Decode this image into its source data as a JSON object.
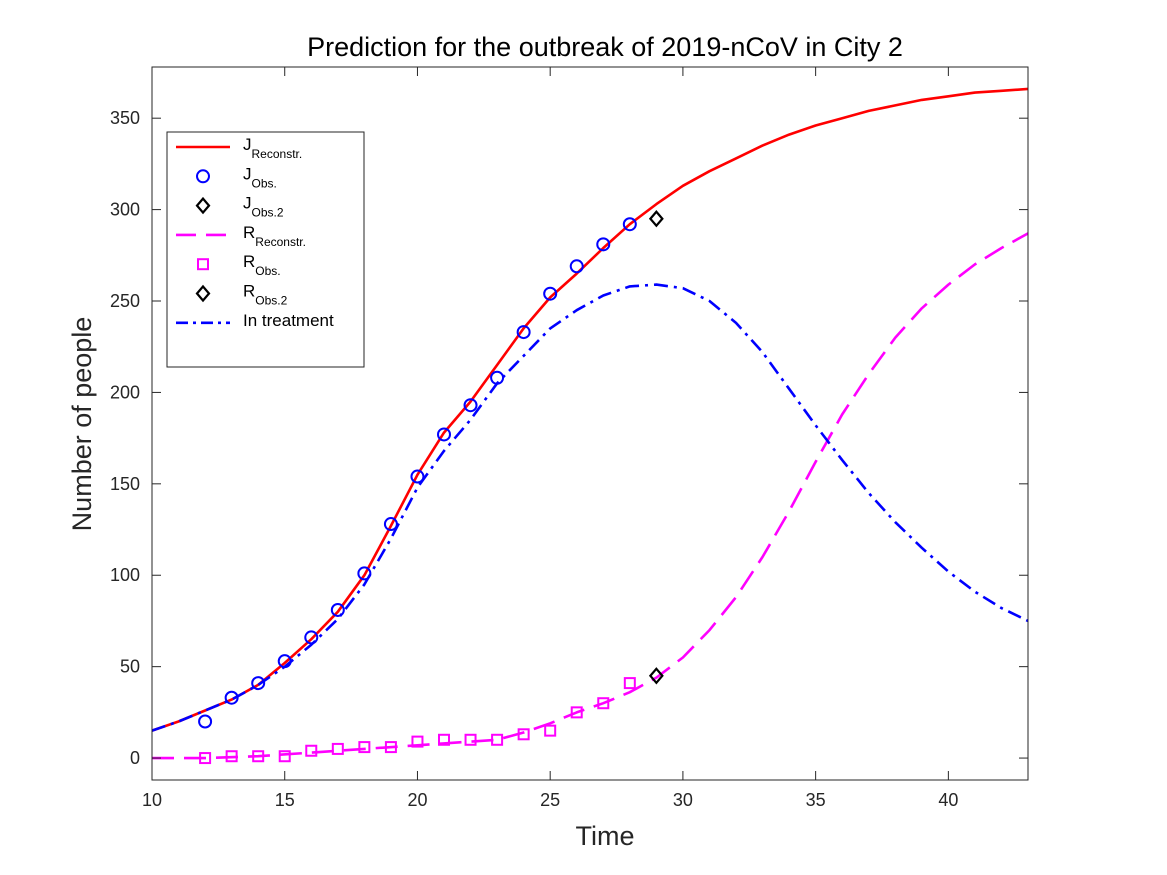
{
  "chart_data": {
    "type": "line",
    "title": "Prediction for the outbreak of 2019-nCoV in City 2",
    "xlabel": "Time",
    "ylabel": "Number of people",
    "xlim": [
      10,
      43
    ],
    "ylim": [
      -12,
      378
    ],
    "xticks": [
      10,
      15,
      20,
      25,
      30,
      35,
      40
    ],
    "yticks": [
      0,
      50,
      100,
      150,
      200,
      250,
      300,
      350
    ],
    "grid": false,
    "legend_position": "top-left",
    "series": [
      {
        "key": "j_reconstr",
        "name": "J",
        "sub": "Reconstr.",
        "style": "solid",
        "marker": "none",
        "color": "#ff0000",
        "x": [
          10,
          11,
          12,
          13,
          14,
          15,
          16,
          17,
          18,
          19,
          20,
          21,
          22,
          23,
          24,
          25,
          26,
          27,
          28,
          29,
          30,
          31,
          32,
          33,
          34,
          35,
          36,
          37,
          38,
          39,
          40,
          41,
          42,
          43
        ],
        "y": [
          15,
          20,
          26,
          32,
          40,
          52,
          65,
          80,
          100,
          127,
          155,
          178,
          195,
          215,
          235,
          252,
          265,
          279,
          292,
          303,
          313,
          321,
          328,
          335,
          341,
          346,
          350,
          354,
          357,
          360,
          362,
          364,
          365,
          366
        ]
      },
      {
        "key": "j_obs",
        "name": "J",
        "sub": "Obs.",
        "style": "none",
        "marker": "circle",
        "color": "#0000ff",
        "x": [
          12,
          13,
          14,
          15,
          16,
          17,
          18,
          19,
          20,
          21,
          22,
          23,
          24,
          25,
          26,
          27,
          28
        ],
        "y": [
          20,
          33,
          41,
          53,
          66,
          81,
          101,
          128,
          154,
          177,
          193,
          208,
          233,
          254,
          269,
          281,
          292
        ]
      },
      {
        "key": "j_obs2",
        "name": "J",
        "sub": "Obs.2",
        "style": "none",
        "marker": "diamond",
        "color": "#000000",
        "x": [
          29
        ],
        "y": [
          295
        ]
      },
      {
        "key": "r_reconstr",
        "name": "R",
        "sub": "Reconstr.",
        "style": "dashed",
        "marker": "none",
        "color": "#ff00ff",
        "x": [
          10,
          12,
          14,
          16,
          18,
          20,
          21,
          22,
          23,
          24,
          25,
          26,
          27,
          28,
          29,
          30,
          31,
          32,
          33,
          34,
          35,
          36,
          37,
          38,
          39,
          40,
          41,
          42,
          43
        ],
        "y": [
          0,
          0,
          1,
          3,
          5,
          7,
          8,
          9,
          10,
          14,
          19,
          25,
          30,
          36,
          44,
          55,
          70,
          88,
          110,
          135,
          162,
          188,
          210,
          230,
          246,
          259,
          270,
          279,
          287
        ]
      },
      {
        "key": "r_obs",
        "name": "R",
        "sub": "Obs.",
        "style": "none",
        "marker": "square",
        "color": "#ff00ff",
        "x": [
          12,
          13,
          14,
          15,
          16,
          17,
          18,
          19,
          20,
          21,
          22,
          23,
          24,
          25,
          26,
          27,
          28
        ],
        "y": [
          0,
          1,
          1,
          1,
          4,
          5,
          6,
          6,
          9,
          10,
          10,
          10,
          13,
          15,
          25,
          30,
          41
        ]
      },
      {
        "key": "r_obs2",
        "name": "R",
        "sub": "Obs.2",
        "style": "none",
        "marker": "diamond",
        "color": "#000000",
        "x": [
          29
        ],
        "y": [
          45
        ]
      },
      {
        "key": "in_treatment",
        "name": "In treatment",
        "sub": "",
        "style": "dashdot",
        "marker": "none",
        "color": "#0000ff",
        "x": [
          10,
          11,
          12,
          13,
          14,
          15,
          16,
          17,
          18,
          19,
          20,
          21,
          22,
          23,
          24,
          25,
          26,
          27,
          28,
          29,
          30,
          31,
          32,
          33,
          34,
          35,
          36,
          37,
          38,
          39,
          40,
          41,
          42,
          43
        ],
        "y": [
          15,
          20,
          26,
          32,
          40,
          50,
          62,
          76,
          95,
          120,
          148,
          168,
          185,
          205,
          220,
          235,
          245,
          253,
          258,
          259,
          257,
          250,
          238,
          222,
          202,
          182,
          163,
          145,
          129,
          115,
          102,
          91,
          82,
          75
        ]
      }
    ]
  }
}
